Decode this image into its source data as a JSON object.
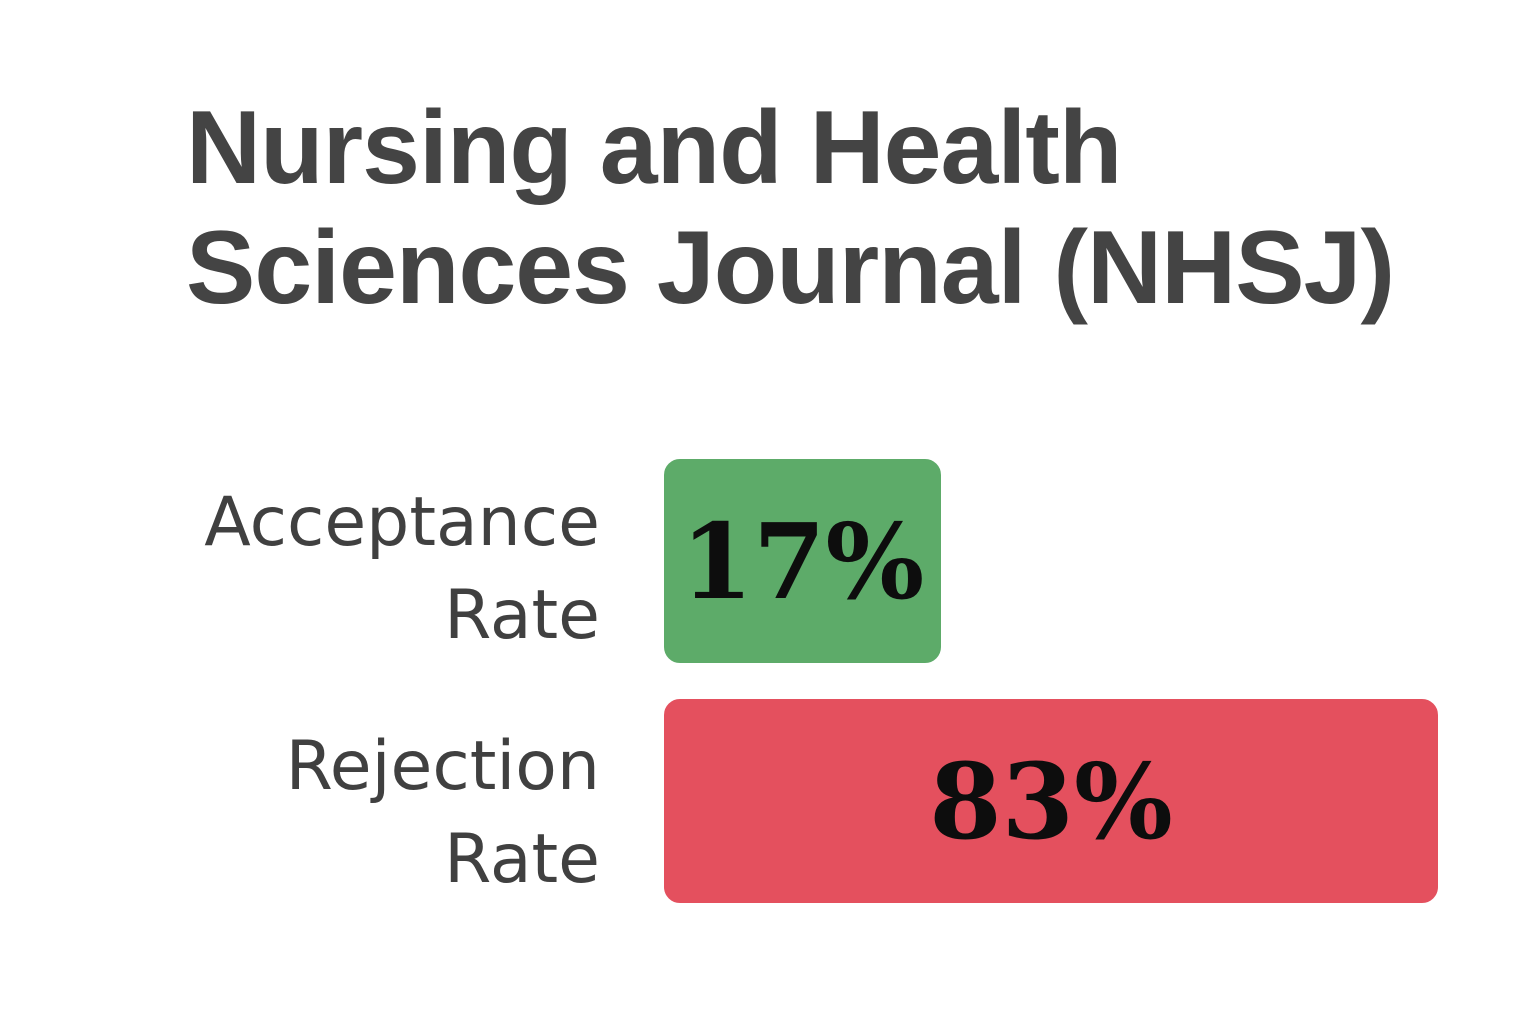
{
  "chart_data": {
    "type": "bar",
    "orientation": "horizontal",
    "title_lines": [
      "Nursing and Health",
      "Sciences Journal (NHSJ)"
    ],
    "unit": "%",
    "xlim": [
      0,
      83
    ],
    "categories": [
      {
        "label_lines": [
          "Acceptance",
          "Rate"
        ],
        "value": 17,
        "value_label": "17%",
        "color": "#5dab69"
      },
      {
        "label_lines": [
          "Rejection",
          "Rate"
        ],
        "value": 83,
        "value_label": "83%",
        "color": "#e4505e"
      }
    ]
  }
}
